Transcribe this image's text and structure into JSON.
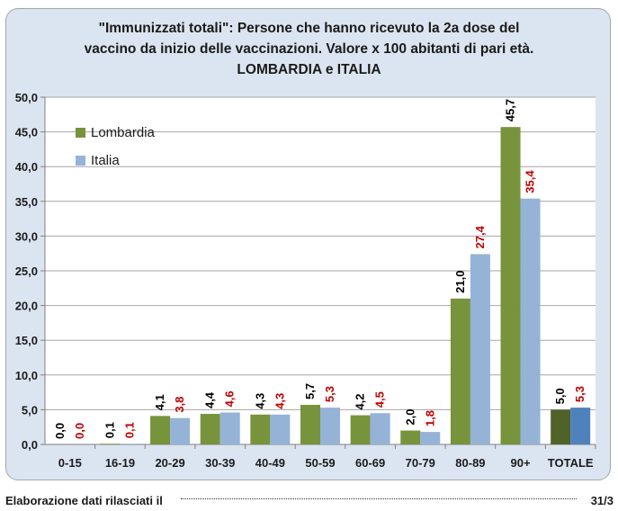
{
  "title": {
    "line1": "\"Immunizzati totali\": Persone che hanno ricevuto la 2a dose del",
    "line2": "vaccino da  inizio delle vaccinazioni. Valore x 100 abitanti di pari età.",
    "line3": "LOMBARDIA e ITALIA"
  },
  "footer": {
    "text": "Elaborazione dati rilasciati il",
    "date": "31/3"
  },
  "colors": {
    "lombardia": "#77933c",
    "italia": "#95b3d7",
    "lombardia_total": "#4f6228",
    "italia_total": "#4f81bd",
    "label_lombardia": "#000000",
    "label_italia": "#c00000",
    "frame": "#dbe5f1",
    "plot_bg": "#ffffff",
    "grid": "#a6a6a6"
  },
  "chart_data": {
    "type": "bar",
    "categories": [
      "0-15",
      "16-19",
      "20-29",
      "30-39",
      "40-49",
      "50-59",
      "60-69",
      "70-79",
      "80-89",
      "90+",
      "TOTALE"
    ],
    "series": [
      {
        "name": "Lombardia",
        "values": [
          0.0,
          0.1,
          4.1,
          4.4,
          4.3,
          5.7,
          4.2,
          2.0,
          21.0,
          45.7,
          5.0
        ],
        "labels": [
          "0,0",
          "0,1",
          "4,1",
          "4,4",
          "4,3",
          "5,7",
          "4,2",
          "2,0",
          "21,0",
          "45,7",
          "5,0"
        ]
      },
      {
        "name": "Italia",
        "values": [
          0.0,
          0.1,
          3.8,
          4.6,
          4.3,
          5.3,
          4.5,
          1.8,
          27.4,
          35.4,
          5.3
        ],
        "labels": [
          "0,0",
          "0,1",
          "3,8",
          "4,6",
          "4,3",
          "5,3",
          "4,5",
          "1,8",
          "27,4",
          "35,4",
          "5,3"
        ]
      }
    ],
    "yticks": [
      "0,0",
      "5,0",
      "10,0",
      "15,0",
      "20,0",
      "25,0",
      "30,0",
      "35,0",
      "40,0",
      "45,0",
      "50,0"
    ],
    "ylim": [
      0,
      50
    ],
    "grid": true,
    "legend_position": "top-left"
  }
}
